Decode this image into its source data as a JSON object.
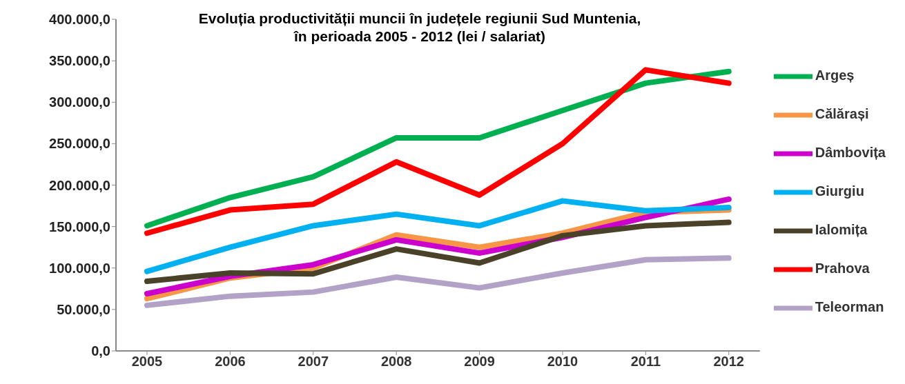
{
  "chart_data": {
    "type": "line",
    "title": "Evoluția productivității muncii în județele regiunii Sud Muntenia,\nîn perioada 2005 - 2012 (lei / salariat)",
    "categories": [
      "2005",
      "2006",
      "2007",
      "2008",
      "2009",
      "2010",
      "2011",
      "2012"
    ],
    "series": [
      {
        "name": "Argeș",
        "color": "#00b050",
        "values": [
          151000,
          185000,
          210000,
          257000,
          257000,
          290000,
          323000,
          337000
        ]
      },
      {
        "name": "Călărași",
        "color": "#f79646",
        "values": [
          63000,
          88000,
          100000,
          140000,
          125000,
          142000,
          167000,
          170000
        ]
      },
      {
        "name": "Dâmbovița",
        "color": "#cc00cc",
        "values": [
          69000,
          90000,
          104000,
          134000,
          118000,
          137000,
          161000,
          183000
        ]
      },
      {
        "name": "Giurgiu",
        "color": "#00b0f0",
        "values": [
          96000,
          125000,
          151000,
          165000,
          151000,
          181000,
          169000,
          173000
        ]
      },
      {
        "name": "Ialomița",
        "color": "#4a4228",
        "values": [
          84000,
          94000,
          93000,
          123000,
          106000,
          139000,
          151000,
          155000
        ]
      },
      {
        "name": "Prahova",
        "color": "#ff0000",
        "values": [
          142000,
          170000,
          177000,
          228000,
          188000,
          250000,
          339000,
          323000
        ]
      },
      {
        "name": "Teleorman",
        "color": "#b3a2c7",
        "values": [
          55000,
          66000,
          71000,
          89000,
          76000,
          94000,
          110000,
          112000
        ]
      }
    ],
    "ylim": [
      0,
      400000
    ],
    "yticks": [
      {
        "value": 0,
        "label": "0,0"
      },
      {
        "value": 50000,
        "label": "50.000,0"
      },
      {
        "value": 100000,
        "label": "100.000,0"
      },
      {
        "value": 150000,
        "label": "150.000,0"
      },
      {
        "value": 200000,
        "label": "200.000,0"
      },
      {
        "value": 250000,
        "label": "250.000,0"
      },
      {
        "value": 300000,
        "label": "300.000,0"
      },
      {
        "value": 350000,
        "label": "350.000,0"
      },
      {
        "value": 400000,
        "label": "400.000,0"
      }
    ],
    "grid": false,
    "legend": "right",
    "marker": "none",
    "line_style": "solid"
  }
}
